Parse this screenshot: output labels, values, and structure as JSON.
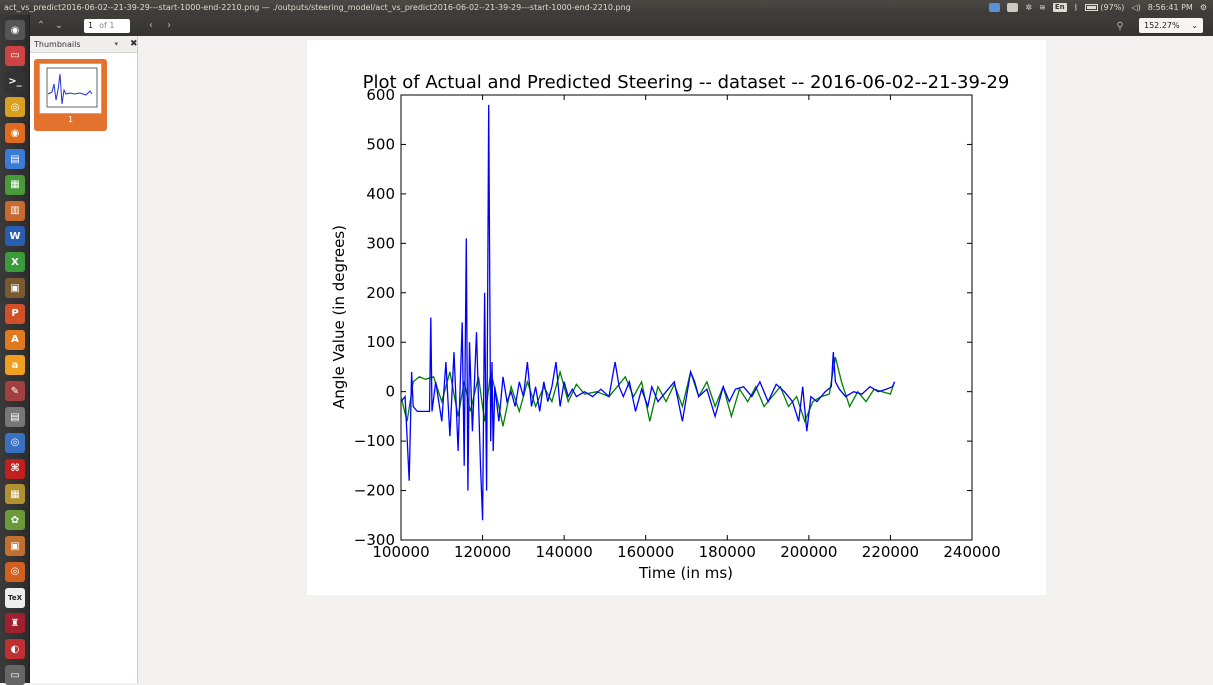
{
  "window": {
    "title": "act_vs_predict2016-06-02--21-39-29---start-1000-end-2210.png — ./outputs/steering_model/act_vs_predict2016-06-02--21-39-29---start-1000-end-2210.png"
  },
  "indicators": {
    "language": "En",
    "battery": "(97%)",
    "clock": "8:56:41 PM"
  },
  "toolbar": {
    "page_value": "1",
    "page_of": "of 1",
    "zoom": "152.27%"
  },
  "sidebar": {
    "title": "Thumbnails",
    "thumbnail_label": "1"
  },
  "launcher": {
    "items": [
      "dash-icon",
      "files-icon",
      "terminal-icon",
      "chrome-icon",
      "firefox-icon",
      "document-viewer-icon",
      "spreadsheet-icon",
      "presentation-icon",
      "writer-icon",
      "calc-icon",
      "archive-icon",
      "impress-icon",
      "software-center-icon",
      "amazon-icon",
      "settings-icon",
      "drive-icon",
      "browser-icon",
      "pdf-icon",
      "files-manager-icon",
      "paint-icon",
      "photos-icon",
      "ubuntu-one-icon",
      "tex-icon",
      "wine-icon",
      "app-icon",
      "trash-icon"
    ]
  },
  "chart_data": {
    "type": "line",
    "title": "Plot of Actual and Predicted Steering -- dataset -- 2016-06-02--21-39-29",
    "xlabel": "Time (in ms)",
    "ylabel": "Angle Value (in degrees)",
    "xlim": [
      100000,
      240000
    ],
    "ylim": [
      -300,
      600
    ],
    "xticks": [
      "100000",
      "120000",
      "140000",
      "160000",
      "180000",
      "200000",
      "220000",
      "240000"
    ],
    "yticks": [
      "−300",
      "−200",
      "−100",
      "0",
      "100",
      "200",
      "300",
      "400",
      "500",
      "600"
    ],
    "grid": false,
    "series": [
      {
        "color": "#008000",
        "x": [
          100000,
          101500,
          103000,
          104500,
          106000,
          108000,
          110000,
          112000,
          114000,
          115500,
          117000,
          119000,
          120500,
          122000,
          123500,
          125000,
          127000,
          129000,
          131000,
          133000,
          135000,
          137000,
          139000,
          141000,
          143000,
          145000,
          148000,
          151000,
          153000,
          155000,
          157000,
          159000,
          161000,
          163000,
          165000,
          167000,
          169000,
          171000,
          173000,
          175000,
          177000,
          179000,
          181000,
          183000,
          185000,
          187000,
          189000,
          191000,
          193000,
          195000,
          197000,
          199000,
          201000,
          203000,
          205000,
          206500,
          208000,
          210000,
          212000,
          214000,
          216000,
          218000,
          220000,
          221000
        ],
        "y": [
          -10,
          -60,
          20,
          30,
          25,
          30,
          -20,
          40,
          -50,
          20,
          -40,
          30,
          -60,
          40,
          -10,
          -70,
          10,
          -40,
          20,
          -30,
          10,
          -20,
          40,
          -20,
          15,
          -5,
          0,
          -10,
          10,
          30,
          -10,
          20,
          -60,
          10,
          -20,
          15,
          -30,
          40,
          -10,
          20,
          -30,
          10,
          -50,
          5,
          -20,
          10,
          -30,
          -10,
          10,
          -30,
          -10,
          -60,
          -20,
          -10,
          -5,
          70,
          20,
          -30,
          0,
          -20,
          5,
          0,
          -5,
          20
        ]
      },
      {
        "color": "#0000ff",
        "x": [
          100000,
          101000,
          102000,
          102600,
          103000,
          104000,
          105000,
          107000,
          107300,
          107600,
          108500,
          110000,
          111000,
          112000,
          113000,
          114000,
          115000,
          115500,
          116000,
          116400,
          116800,
          117500,
          118500,
          119500,
          120000,
          120500,
          121000,
          121500,
          122000,
          122300,
          122600,
          123000,
          124000,
          125000,
          126000,
          127000,
          128000,
          129000,
          130000,
          131000,
          132000,
          133000,
          134000,
          135000,
          136000,
          137000,
          138000,
          139000,
          140000,
          141000,
          142000,
          143000,
          145000,
          147000,
          149000,
          151000,
          152500,
          153500,
          154500,
          156000,
          157500,
          159000,
          160500,
          161500,
          163000,
          165000,
          167000,
          169000,
          171000,
          172000,
          173000,
          175000,
          177000,
          179000,
          180500,
          182000,
          184000,
          186000,
          188000,
          190000,
          192000,
          194000,
          196000,
          197500,
          198500,
          199500,
          200500,
          202000,
          204000,
          205500,
          206000,
          206500,
          207500,
          209000,
          211000,
          213000,
          215000,
          217000,
          219000,
          220500,
          221000
        ],
        "y": [
          -20,
          -10,
          -180,
          40,
          -30,
          -40,
          -40,
          -40,
          150,
          -40,
          20,
          -60,
          60,
          -90,
          80,
          -120,
          140,
          -150,
          310,
          -200,
          100,
          -80,
          120,
          -150,
          -260,
          200,
          -200,
          580,
          -100,
          60,
          -120,
          10,
          -60,
          30,
          -20,
          0,
          -30,
          20,
          -10,
          60,
          -30,
          10,
          -40,
          20,
          -20,
          10,
          60,
          -30,
          20,
          -10,
          5,
          -10,
          0,
          -10,
          5,
          -10,
          60,
          10,
          -10,
          20,
          -40,
          5,
          -30,
          10,
          -20,
          0,
          20,
          -60,
          40,
          20,
          -10,
          5,
          -50,
          10,
          -20,
          5,
          10,
          -10,
          20,
          -20,
          15,
          0,
          -20,
          -60,
          10,
          -80,
          -10,
          -20,
          0,
          10,
          80,
          20,
          5,
          -10,
          0,
          -5,
          10,
          0,
          5,
          10,
          20
        ]
      }
    ]
  }
}
